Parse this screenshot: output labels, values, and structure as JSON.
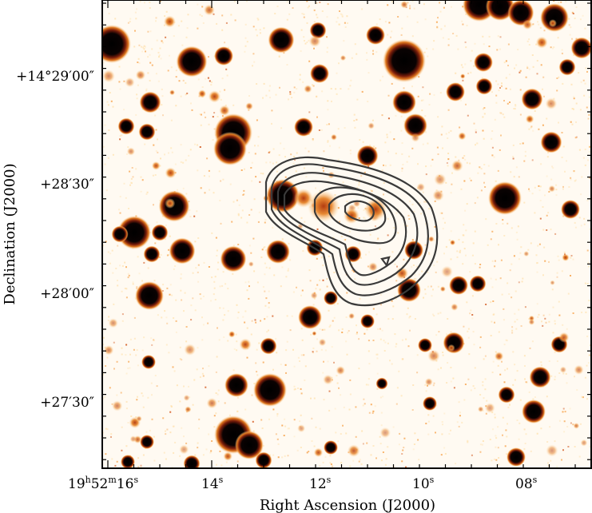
{
  "figure": {
    "x_axis_title": "Right Ascension (J2000)",
    "y_axis_title": "Declination (J2000)",
    "x_ticks": [
      {
        "h": "19",
        "m": "52",
        "s": "16",
        "label": "19h52m16s",
        "ra_sec": 16
      },
      {
        "s": "14",
        "label": "14s",
        "ra_sec": 14
      },
      {
        "s": "12",
        "label": "12s",
        "ra_sec": 12
      },
      {
        "s": "10",
        "label": "10s",
        "ra_sec": 10
      },
      {
        "s": "08",
        "label": "08s",
        "ra_sec": 8
      }
    ],
    "y_ticks": [
      {
        "label": "+14°29′00″",
        "dec_arcsec": 29
      },
      {
        "label": "+28′30″",
        "dec_arcsec": 28.5
      },
      {
        "label": "+28′00″",
        "dec_arcsec": 28
      },
      {
        "label": "+27′30″",
        "dec_arcsec": 27.5
      }
    ],
    "colormap": [
      "#ffffff",
      "#ffe2b0",
      "#f7a24a",
      "#d2551a",
      "#7a1d0a",
      "#000000"
    ],
    "contour_color": "#3a3a3a"
  }
}
